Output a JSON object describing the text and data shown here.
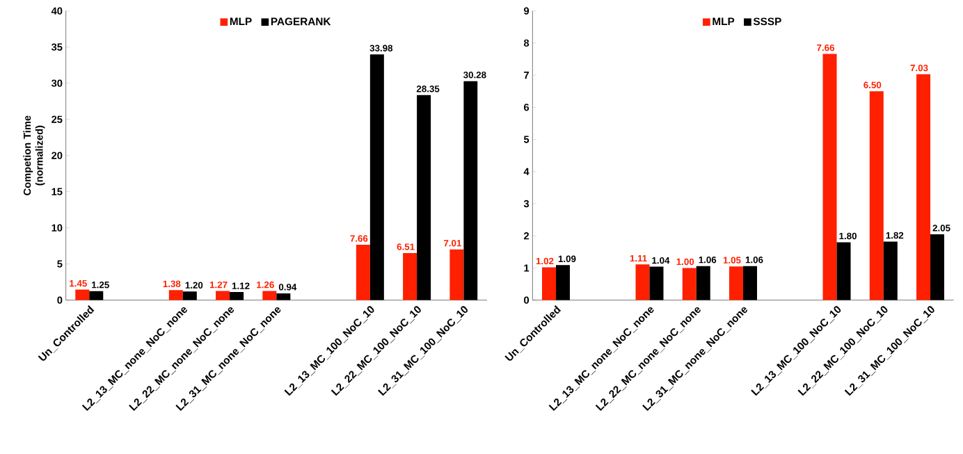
{
  "chart_data": [
    {
      "type": "bar",
      "ylabel": "Competion Time (normalized)",
      "categories": [
        "Un_Controlled",
        null,
        "L2_13_MC_none_NoC_none",
        "L2_22_MC_none_NoC_none",
        "L2_31_MC_none_NoC_none",
        null,
        "L2_13_MC_100_NoC_10",
        "L2_22_MC_100_NoC_10",
        "L2_31_MC_100_NoC_10"
      ],
      "series": [
        {
          "name": "MLP",
          "color": "#ff2000",
          "values": [
            1.45,
            null,
            1.38,
            1.27,
            1.26,
            null,
            7.66,
            6.51,
            7.01
          ],
          "value_labels": [
            "1.45",
            null,
            "1.38",
            "1.27",
            "1.26",
            null,
            "7.66",
            "6.51",
            "7.01"
          ]
        },
        {
          "name": "PAGERANK",
          "color": "#000000",
          "values": [
            1.25,
            null,
            1.2,
            1.12,
            0.94,
            null,
            33.98,
            28.35,
            30.28
          ],
          "value_labels": [
            "1.25",
            null,
            "1.20",
            "1.12",
            "0.94",
            null,
            "33.98",
            "28.35",
            "30.28"
          ]
        }
      ],
      "ylim": [
        0,
        40
      ],
      "yticks": [
        0,
        5,
        10,
        15,
        20,
        25,
        30,
        35,
        40
      ],
      "legend": "top"
    },
    {
      "type": "bar",
      "categories": [
        "Un_Controlled",
        null,
        "L2_13_MC_none_NoC_none",
        "L2_22_MC_none_NoC_none",
        "L2_31_MC_none_NoC_none",
        null,
        "L2_13_MC_100_NoC_10",
        "L2_22_MC_100_NoC_10",
        "L2_31_MC_100_NoC_10"
      ],
      "series": [
        {
          "name": "MLP",
          "color": "#ff2000",
          "values": [
            1.02,
            null,
            1.11,
            1.0,
            1.05,
            null,
            7.66,
            6.5,
            7.03
          ],
          "value_labels": [
            "1.02",
            null,
            "1.11",
            "1.00",
            "1.05",
            null,
            "7.66",
            "6.50",
            "7.03"
          ]
        },
        {
          "name": "SSSP",
          "color": "#000000",
          "values": [
            1.09,
            null,
            1.04,
            1.06,
            1.06,
            null,
            1.8,
            1.82,
            2.05
          ],
          "value_labels": [
            "1.09",
            null,
            "1.04",
            "1.06",
            "1.06",
            null,
            "1.80",
            "1.82",
            "2.05"
          ]
        }
      ],
      "ylim": [
        0,
        9
      ],
      "yticks": [
        0,
        1,
        2,
        3,
        4,
        5,
        6,
        7,
        8,
        9
      ],
      "legend": "top"
    }
  ]
}
